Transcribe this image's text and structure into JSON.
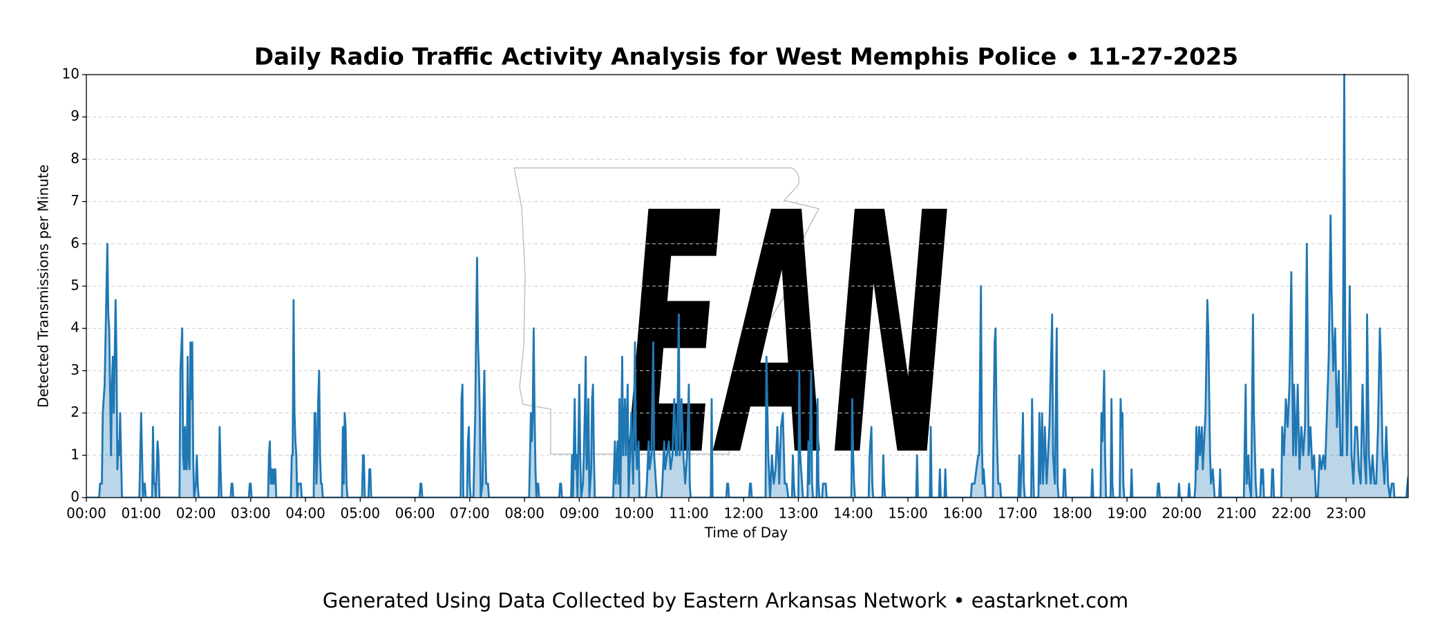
{
  "chart_data": {
    "type": "line",
    "title": "Daily Radio Traffic Activity Analysis for West Memphis Police • 11-27-2025",
    "xlabel": "Time of Day",
    "ylabel": "Detected Transmissions per Minute",
    "footer": "Generated Using Data Collected by Eastern Arkansas Network • eastarknet.com",
    "watermark": "EAN",
    "xlim": [
      0,
      1448
    ],
    "ylim": [
      0,
      10
    ],
    "yticks": [
      0,
      1,
      2,
      3,
      4,
      5,
      6,
      7,
      8,
      9,
      10
    ],
    "xticks": [
      {
        "value": 0,
        "label": "00:00"
      },
      {
        "value": 60,
        "label": "01:00"
      },
      {
        "value": 120,
        "label": "02:00"
      },
      {
        "value": 180,
        "label": "03:00"
      },
      {
        "value": 240,
        "label": "04:00"
      },
      {
        "value": 300,
        "label": "05:00"
      },
      {
        "value": 360,
        "label": "06:00"
      },
      {
        "value": 420,
        "label": "07:00"
      },
      {
        "value": 480,
        "label": "08:00"
      },
      {
        "value": 540,
        "label": "09:00"
      },
      {
        "value": 600,
        "label": "10:00"
      },
      {
        "value": 660,
        "label": "11:00"
      },
      {
        "value": 720,
        "label": "12:00"
      },
      {
        "value": 780,
        "label": "13:00"
      },
      {
        "value": 840,
        "label": "14:00"
      },
      {
        "value": 900,
        "label": "15:00"
      },
      {
        "value": 960,
        "label": "16:00"
      },
      {
        "value": 1020,
        "label": "17:00"
      },
      {
        "value": 1080,
        "label": "18:00"
      },
      {
        "value": 1140,
        "label": "19:00"
      },
      {
        "value": 1200,
        "label": "20:00"
      },
      {
        "value": 1260,
        "label": "21:00"
      },
      {
        "value": 1320,
        "label": "22:00"
      },
      {
        "value": 1380,
        "label": "23:00"
      }
    ],
    "grid": true,
    "color": "#1f77b4",
    "fill": true,
    "x": [
      0,
      14,
      15,
      17,
      18,
      20,
      23,
      24,
      25,
      27,
      28,
      29,
      30,
      32,
      33,
      34,
      35,
      36,
      37,
      38,
      39,
      58,
      59,
      60,
      61,
      62,
      63,
      64,
      65,
      72,
      73,
      74,
      75,
      76,
      78,
      79,
      80,
      102,
      103,
      105,
      106,
      107,
      108,
      109,
      110,
      111,
      112,
      113,
      114,
      115,
      116,
      117,
      118,
      120,
      121,
      122,
      123,
      145,
      146,
      147,
      148,
      158,
      159,
      160,
      161,
      178,
      179,
      180,
      181,
      199,
      200,
      201,
      202,
      203,
      204,
      205,
      206,
      207,
      208,
      224,
      225,
      226,
      227,
      228,
      229,
      230,
      231,
      232,
      233,
      234,
      235,
      236,
      249,
      250,
      251,
      252,
      253,
      254,
      255,
      256,
      257,
      258,
      259,
      280,
      281,
      282,
      283,
      284,
      285,
      286,
      302,
      303,
      304,
      305,
      309,
      310,
      311,
      312,
      365,
      366,
      367,
      368,
      410,
      411,
      412,
      413,
      417,
      418,
      419,
      420,
      421,
      424,
      425,
      426,
      427,
      428,
      429,
      430,
      431,
      432,
      434,
      435,
      436,
      437,
      438,
      440,
      441,
      485,
      486,
      487,
      488,
      489,
      490,
      491,
      492,
      493,
      494,
      495,
      496,
      518,
      519,
      520,
      521,
      531,
      532,
      533,
      535,
      536,
      537,
      538,
      540,
      541,
      542,
      544,
      545,
      546,
      547,
      548,
      549,
      550,
      551,
      553,
      554,
      555,
      556,
      557,
      577,
      578,
      579,
      580,
      582,
      583,
      584,
      585,
      587,
      588,
      590,
      591,
      593,
      594,
      597,
      598,
      599,
      601,
      602,
      603,
      605,
      606,
      613,
      614,
      616,
      617,
      619,
      621,
      622,
      624,
      625,
      630,
      631,
      633,
      634,
      636,
      638,
      640,
      642,
      644,
      646,
      647,
      649,
      650,
      652,
      654,
      656,
      658,
      660,
      661,
      662,
      684,
      685,
      686,
      701,
      702,
      703,
      704,
      726,
      727,
      728,
      729,
      744,
      745,
      747,
      749,
      751,
      753,
      755,
      757,
      759,
      761,
      763,
      765,
      767,
      769,
      773,
      774,
      775,
      776,
      780,
      781,
      782,
      784,
      785,
      790,
      791,
      792,
      794,
      795,
      796,
      800,
      801,
      802,
      803,
      806,
      807,
      810,
      811,
      838,
      839,
      840,
      841,
      842,
      857,
      858,
      860,
      861,
      862,
      872,
      873,
      874,
      875,
      909,
      910,
      911,
      924,
      925,
      926,
      934,
      935,
      936,
      940,
      941,
      942,
      969,
      970,
      973,
      975,
      977,
      978,
      980,
      981,
      982,
      983,
      984,
      985,
      993,
      994,
      995,
      996,
      997,
      998,
      999,
      1001,
      1002,
      1021,
      1022,
      1023,
      1025,
      1026,
      1027,
      1028,
      1035,
      1036,
      1037,
      1038,
      1043,
      1044,
      1045,
      1047,
      1048,
      1050,
      1052,
      1055,
      1058,
      1059,
      1061,
      1063,
      1064,
      1065,
      1070,
      1071,
      1072,
      1073,
      1101,
      1102,
      1103,
      1111,
      1112,
      1113,
      1114,
      1115,
      1116,
      1117,
      1122,
      1123,
      1124,
      1125,
      1132,
      1133,
      1134,
      1135,
      1136,
      1137,
      1144,
      1145,
      1146,
      1173,
      1174,
      1175,
      1176,
      1196,
      1197,
      1198,
      1207,
      1208,
      1209,
      1214,
      1215,
      1216,
      1217,
      1219,
      1220,
      1222,
      1223,
      1226,
      1228,
      1229,
      1231,
      1232,
      1234,
      1235,
      1236,
      1241,
      1242,
      1243,
      1268,
      1270,
      1271,
      1273,
      1274,
      1276,
      1278,
      1279,
      1281,
      1282,
      1286,
      1287,
      1288,
      1289,
      1290,
      1298,
      1299,
      1300,
      1301,
      1309,
      1310,
      1312,
      1314,
      1316,
      1318,
      1320,
      1322,
      1323,
      1325,
      1327,
      1329,
      1331,
      1333,
      1335,
      1337,
      1339,
      1341,
      1343,
      1345,
      1347,
      1349,
      1351,
      1353,
      1355,
      1357,
      1359,
      1361,
      1363,
      1364,
      1366,
      1368,
      1370,
      1372,
      1374,
      1376,
      1378,
      1379,
      1381,
      1383,
      1384,
      1386,
      1388,
      1390,
      1392,
      1394,
      1396,
      1398,
      1400,
      1402,
      1403,
      1405,
      1407,
      1409,
      1411,
      1413,
      1415,
      1417,
      1418,
      1420,
      1422,
      1424,
      1426,
      1428,
      1430,
      1432,
      1433,
      1446,
      1448
    ],
    "values": [
      0,
      0,
      0.33,
      0.33,
      2,
      2.67,
      6,
      4.33,
      4,
      1,
      2.67,
      3.33,
      2,
      4.67,
      3.33,
      0.67,
      1.33,
      1,
      2,
      1,
      0,
      0,
      1,
      2,
      1,
      0,
      0.33,
      0.33,
      0,
      0,
      1.67,
      0.33,
      0.33,
      0,
      1.33,
      1,
      0,
      0,
      3,
      4,
      1,
      0.67,
      1.67,
      0.67,
      0.67,
      3.33,
      1,
      0.67,
      3.67,
      2.33,
      3.67,
      1,
      0,
      0.33,
      1,
      0.33,
      0,
      0,
      1.67,
      0.67,
      0,
      0,
      0.33,
      0.33,
      0,
      0,
      0.33,
      0.33,
      0,
      0,
      1,
      1.33,
      0.33,
      0.67,
      0.33,
      0.67,
      0.33,
      0.67,
      0,
      0,
      1,
      1,
      4.67,
      2,
      1.33,
      1,
      0,
      0.33,
      0.33,
      0.33,
      0.33,
      0,
      0,
      2,
      2,
      0.33,
      1,
      2.33,
      3,
      1,
      0.33,
      0.33,
      0,
      0,
      1.67,
      0.33,
      2,
      1.67,
      0.33,
      0,
      0,
      1,
      1,
      0,
      0,
      0.67,
      0.67,
      0,
      0,
      0.33,
      0.33,
      0,
      0,
      2.33,
      2.67,
      0,
      0,
      1.33,
      1.67,
      0.33,
      0,
      0,
      1,
      2,
      4,
      5.67,
      3.67,
      3,
      2,
      0,
      0.33,
      2,
      3,
      1.33,
      0.33,
      0.33,
      0,
      0,
      1,
      2,
      1.33,
      2,
      4,
      2,
      0.67,
      0,
      0.33,
      0.33,
      0,
      0,
      0.33,
      0.33,
      0,
      0,
      1,
      0,
      2.33,
      0.67,
      1,
      0,
      2.67,
      1,
      0,
      0.33,
      1,
      2,
      3.33,
      0.67,
      1,
      2.33,
      0,
      0.67,
      2.33,
      2.67,
      1,
      0,
      0,
      0.67,
      1.33,
      0.33,
      1.33,
      0.33,
      2.33,
      0,
      3.33,
      1,
      2.33,
      1,
      2.67,
      0,
      2,
      1,
      0.33,
      3.67,
      1.33,
      0.67,
      1.33,
      0,
      0,
      0.33,
      1.33,
      0.67,
      1,
      3.67,
      1,
      0.33,
      0,
      0,
      0.33,
      1.33,
      0.67,
      1,
      1.33,
      0.67,
      1,
      2.33,
      1,
      1,
      4.33,
      1,
      2.33,
      1,
      0.33,
      1,
      2.67,
      0.33,
      0,
      0,
      2.33,
      0,
      0,
      0.33,
      0.33,
      0,
      0,
      0.33,
      0.33,
      0,
      0,
      3.33,
      1,
      0,
      1,
      0.33,
      0.67,
      1.67,
      0.33,
      1.67,
      2,
      0.33,
      0.33,
      0,
      0,
      1,
      0.33,
      0,
      0,
      3,
      1,
      0.33,
      0,
      0,
      1.33,
      0.33,
      3,
      0.33,
      0,
      0,
      2.33,
      0.33,
      0,
      0,
      0.33,
      0.33,
      0,
      0,
      2.33,
      1,
      0.33,
      0,
      0,
      1,
      1.67,
      0.33,
      0,
      0,
      1,
      0.33,
      0,
      0,
      1,
      0,
      0,
      1.67,
      0,
      0,
      0.67,
      0,
      0,
      0.67,
      0,
      0,
      0.33,
      0.33,
      0.67,
      1,
      1,
      5,
      1.33,
      0.33,
      0.67,
      0.33,
      0,
      0,
      2,
      3.67,
      4,
      2,
      1,
      0.33,
      0.33,
      0,
      0,
      1,
      0,
      1,
      2,
      0.33,
      0,
      0,
      2.33,
      1,
      0,
      0,
      2,
      0.33,
      2,
      0.33,
      1.67,
      0.33,
      1.67,
      4.33,
      1,
      0.33,
      4,
      0.33,
      0,
      0,
      0.67,
      0.67,
      0,
      0,
      0.67,
      0,
      0,
      2,
      1.33,
      2,
      3,
      1,
      0,
      0,
      2.33,
      0.33,
      0,
      0,
      2.33,
      1.67,
      2,
      0.33,
      0,
      0,
      0.67,
      0,
      0,
      0.33,
      0.33,
      0,
      0,
      0.33,
      0,
      0,
      0.33,
      0,
      0,
      0.33,
      1.67,
      0.67,
      1.67,
      1,
      1.67,
      0.67,
      2,
      4.67,
      4,
      1,
      0.33,
      0.67,
      0.33,
      0,
      0,
      0.67,
      0,
      0,
      2.67,
      0.33,
      1,
      0.33,
      0,
      4.33,
      2,
      0.33,
      0,
      0,
      0.67,
      0.33,
      0.67,
      0,
      0,
      0.67,
      0.67,
      0,
      0,
      1.67,
      1,
      2.33,
      1.67,
      2.67,
      5.33,
      1,
      2.67,
      1,
      2.67,
      0.67,
      1.67,
      1,
      1.67,
      6,
      1,
      1.67,
      0.67,
      1,
      0,
      0,
      1,
      0.67,
      1,
      0.67,
      2,
      3.33,
      6.67,
      5,
      3,
      4,
      1.67,
      3,
      1,
      1,
      10,
      4,
      1,
      3,
      5,
      1,
      0.33,
      1.67,
      1.67,
      0.67,
      0.33,
      2.67,
      1,
      0.33,
      4.33,
      1,
      0.33,
      1,
      0.33,
      0.33,
      1.67,
      4,
      3.33,
      1,
      0.33,
      1.67,
      0.33,
      0,
      0.33,
      0.33,
      0,
      0,
      0.5
    ]
  }
}
